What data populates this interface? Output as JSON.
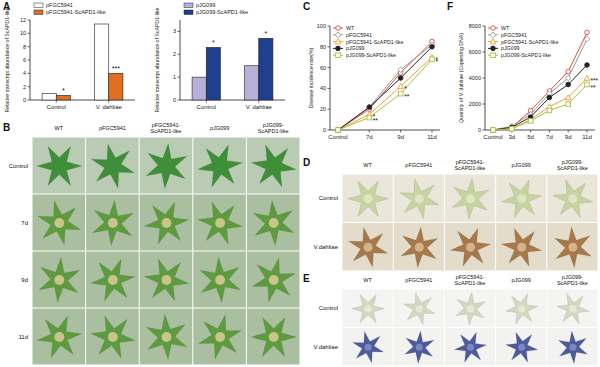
{
  "panel_letters": [
    "A",
    "B",
    "C",
    "D",
    "E",
    "F"
  ],
  "chart_data": [
    {
      "type": "bar",
      "y_label": "Relative transcript abundance of ScAPD1-like",
      "categories": [
        "Control",
        "V. dahliae"
      ],
      "series": [
        {
          "name": "pFGC5941",
          "color": "#ffffff",
          "values": [
            1.0,
            11.4
          ]
        },
        {
          "name": "pFGC5941-ScAPD1-like",
          "color": "#e07020",
          "values": [
            0.7,
            4.0
          ],
          "annotations": [
            "*",
            "***"
          ]
        }
      ],
      "ylim": [
        0,
        12
      ],
      "yticks": [
        0,
        2,
        4,
        6,
        8,
        10,
        12
      ],
      "legend": "top"
    },
    {
      "type": "bar",
      "y_label": "Relative transcript abundance of ScAPD1-like",
      "categories": [
        "Control",
        "V. dahliae"
      ],
      "series": [
        {
          "name": "pJG099",
          "color": "#b8b0d8",
          "values": [
            1.0,
            1.5
          ]
        },
        {
          "name": "pJG099-ScAPD1-like",
          "color": "#1f3f8f",
          "values": [
            2.3,
            2.7
          ],
          "annotations": [
            "*",
            "*"
          ]
        }
      ],
      "ylim": [
        0,
        3.5
      ],
      "yticks": [
        0,
        1,
        2,
        3
      ],
      "legend": "top"
    },
    {
      "type": "line",
      "y_label": "Disease incidence rate(%)",
      "categories": [
        "Control",
        "7d",
        "9d",
        "11d"
      ],
      "series": [
        {
          "name": "WT",
          "color": "#d94f3d",
          "marker": "circle",
          "values": [
            0,
            20,
            55,
            85
          ]
        },
        {
          "name": "pFGC5941",
          "color": "#9a9a9a",
          "marker": "diamond",
          "values": [
            0,
            22,
            58,
            82
          ]
        },
        {
          "name": "pFGC5941-ScAPD1-like",
          "color": "#f0a030",
          "marker": "triangle",
          "values": [
            0,
            15,
            42,
            70
          ],
          "annotations": [
            null,
            "*",
            "*",
            "*"
          ]
        },
        {
          "name": "pJG099",
          "color": "#222222",
          "marker": "circle",
          "values": [
            0,
            22,
            50,
            80
          ]
        },
        {
          "name": "pJG099-ScAPD1-like",
          "color": "#a8c040",
          "marker": "square",
          "values": [
            0,
            12,
            35,
            68
          ],
          "annotations": [
            null,
            "**",
            "**",
            "*"
          ]
        }
      ],
      "ylim": [
        0,
        100
      ],
      "yticks": [
        0,
        20,
        40,
        60,
        80,
        100
      ],
      "legend": "top-left"
    },
    {
      "type": "line",
      "y_label": "Quantity of V. dahliae (Copies/ng DNA)",
      "categories": [
        "Control",
        "3d",
        "5d",
        "7d",
        "9d",
        "11d"
      ],
      "series": [
        {
          "name": "WT",
          "color": "#d94f3d",
          "marker": "circle",
          "values": [
            0,
            200,
            1500,
            3000,
            4500,
            7500
          ]
        },
        {
          "name": "pFGC5941",
          "color": "#9a9a9a",
          "marker": "diamond",
          "values": [
            0,
            300,
            1200,
            2800,
            4000,
            7000
          ]
        },
        {
          "name": "pFGC5941-ScAPD1-like",
          "color": "#f0a030",
          "marker": "triangle",
          "values": [
            0,
            100,
            800,
            1800,
            2500,
            4000
          ],
          "annotations": [
            null,
            null,
            null,
            null,
            null,
            "***"
          ]
        },
        {
          "name": "pJG099",
          "color": "#222222",
          "marker": "circle",
          "values": [
            0,
            200,
            1000,
            2500,
            3500,
            5000
          ]
        },
        {
          "name": "pJG099-ScAPD1-like",
          "color": "#a8c040",
          "marker": "square",
          "values": [
            0,
            100,
            700,
            1500,
            2000,
            3500
          ],
          "annotations": [
            null,
            null,
            null,
            null,
            null,
            "**"
          ]
        }
      ],
      "ylim": [
        0,
        8000
      ],
      "yticks": [
        0,
        2000,
        4000,
        6000,
        8000
      ],
      "legend": "top-left"
    }
  ],
  "photo_panels": [
    {
      "columns": [
        "WT",
        "pFGC5941",
        "pFGC5941-ScAPD1-like",
        "pJG099",
        "pJG099-ScAPD1-like"
      ],
      "rows": [
        "Control",
        "7d",
        "9d",
        "11d"
      ]
    },
    {
      "columns": [
        "WT",
        "pFGC5941",
        "pFGC5941-ScAPD1-like",
        "pJG099",
        "pJG099-ScAPD1-like"
      ],
      "rows": [
        "Control",
        "V.dahliae"
      ]
    },
    {
      "columns": [
        "WT",
        "pFGC5941",
        "pFGC5941-ScAPD1-like",
        "pJG099",
        "pJG099-ScAPD1-like"
      ],
      "rows": [
        "Control",
        "V.dahliae"
      ]
    }
  ]
}
